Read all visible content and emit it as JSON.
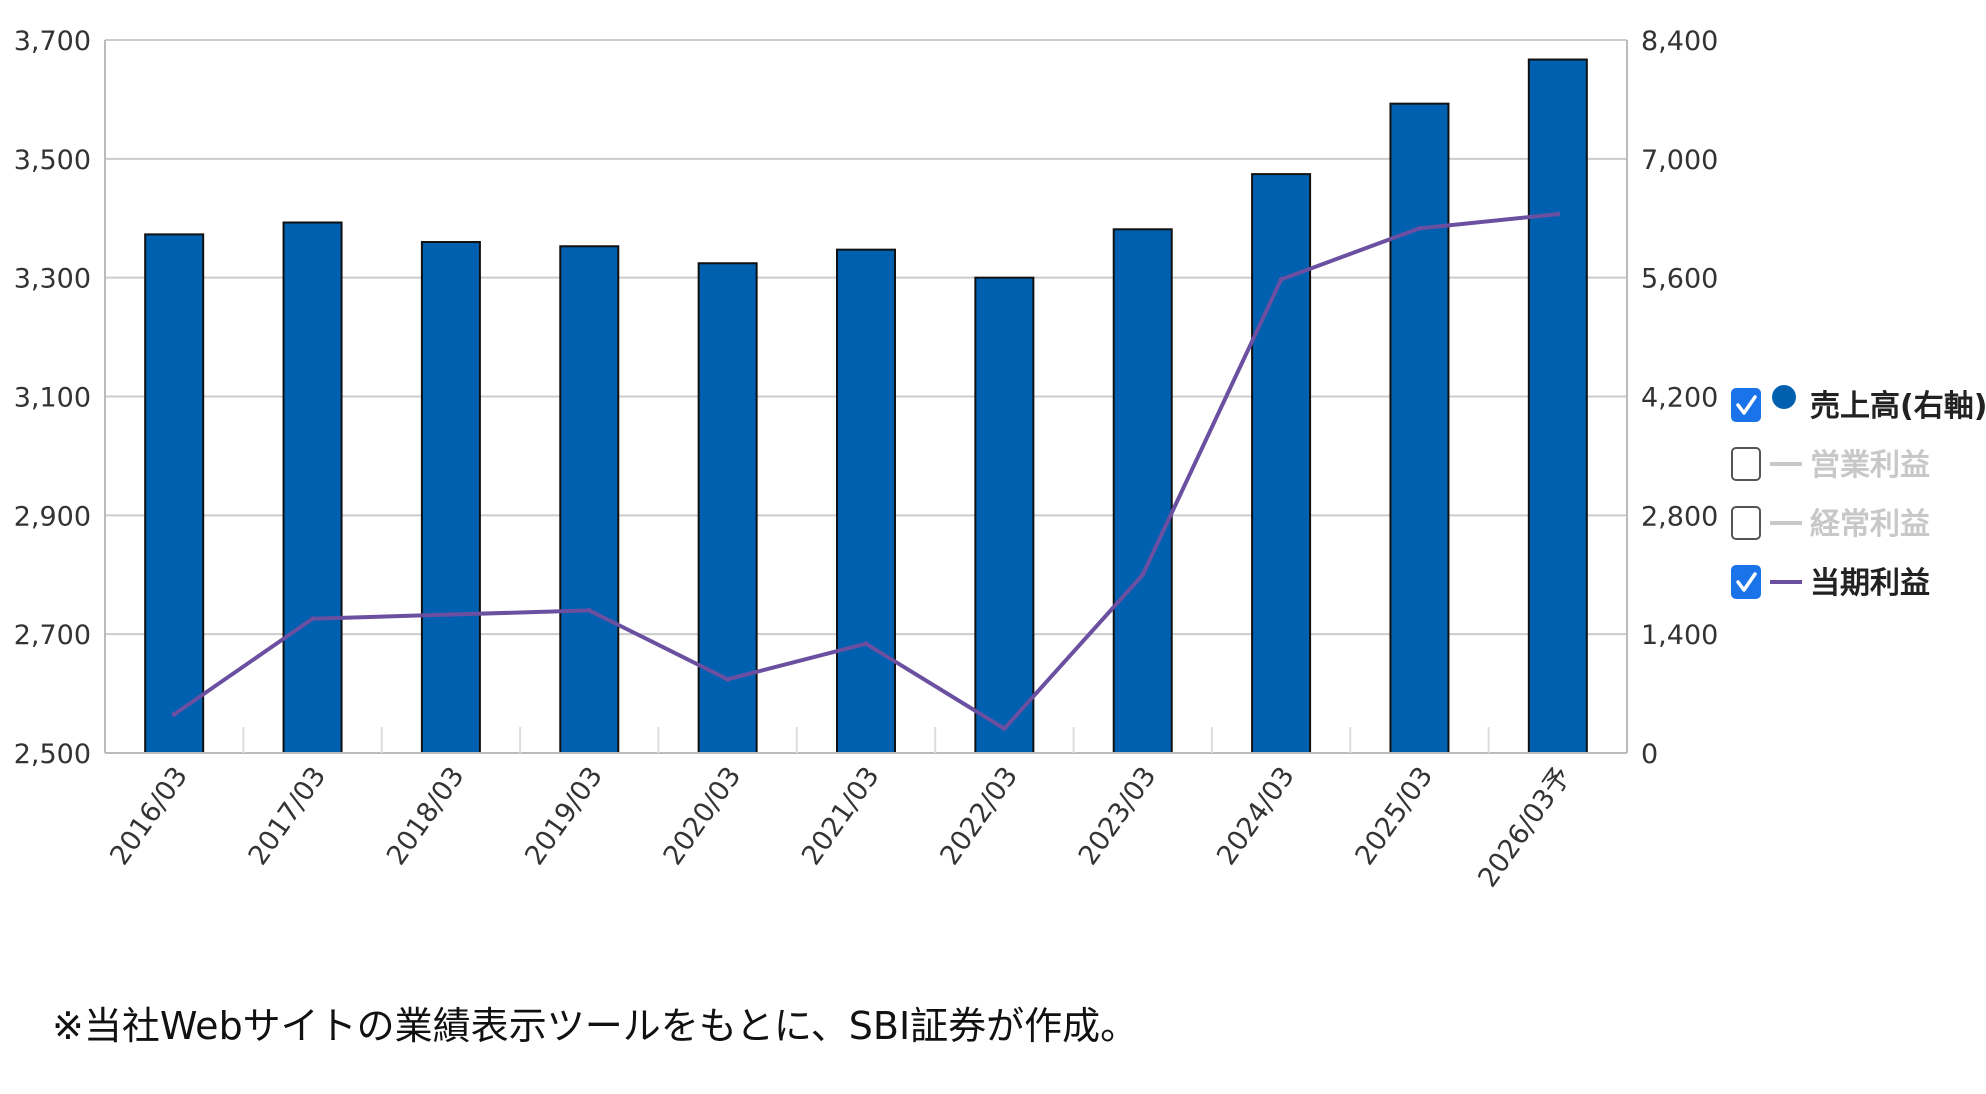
{
  "chart_data": {
    "type": "bar",
    "categories": [
      "2016/03",
      "2017/03",
      "2018/03",
      "2019/03",
      "2020/03",
      "2021/03",
      "2022/03",
      "2023/03",
      "2024/03",
      "2025/03",
      "2026/03予"
    ],
    "series": [
      {
        "name": "売上高(右軸)",
        "type": "bar",
        "axis": "right",
        "color": "#0060b0",
        "values": [
          6110,
          6250,
          6020,
          5970,
          5770,
          5930,
          5600,
          6170,
          6820,
          7650,
          8170
        ]
      },
      {
        "name": "当期利益",
        "type": "line",
        "axis": "left",
        "color": "#6b4fa0",
        "values": [
          2565,
          2726,
          2733,
          2740,
          2624,
          2684,
          2541,
          2800,
          3297,
          3383,
          3407
        ]
      }
    ],
    "y_left": {
      "ylim": [
        2500,
        3700
      ],
      "ticks": [
        "2,500",
        "2,700",
        "2,900",
        "3,100",
        "3,300",
        "3,500",
        "3,700"
      ]
    },
    "y_right": {
      "ylim": [
        0,
        8400
      ],
      "ticks": [
        "0",
        "1,400",
        "2,800",
        "4,200",
        "5,600",
        "7,000",
        "8,400"
      ]
    },
    "grid": true,
    "legend_position": "right",
    "legend": [
      {
        "label": "売上高(右軸)",
        "checked": true,
        "marker": "circle",
        "color": "#0060b0"
      },
      {
        "label": "営業利益",
        "checked": false,
        "marker": "line",
        "color": "#c8c8c8"
      },
      {
        "label": "経常利益",
        "checked": false,
        "marker": "line",
        "color": "#c8c8c8"
      },
      {
        "label": "当期利益",
        "checked": true,
        "marker": "line",
        "color": "#6b4fa0"
      }
    ]
  },
  "footnote": "※当社Webサイトの業績表示ツールをもとに、SBI証券が作成。"
}
